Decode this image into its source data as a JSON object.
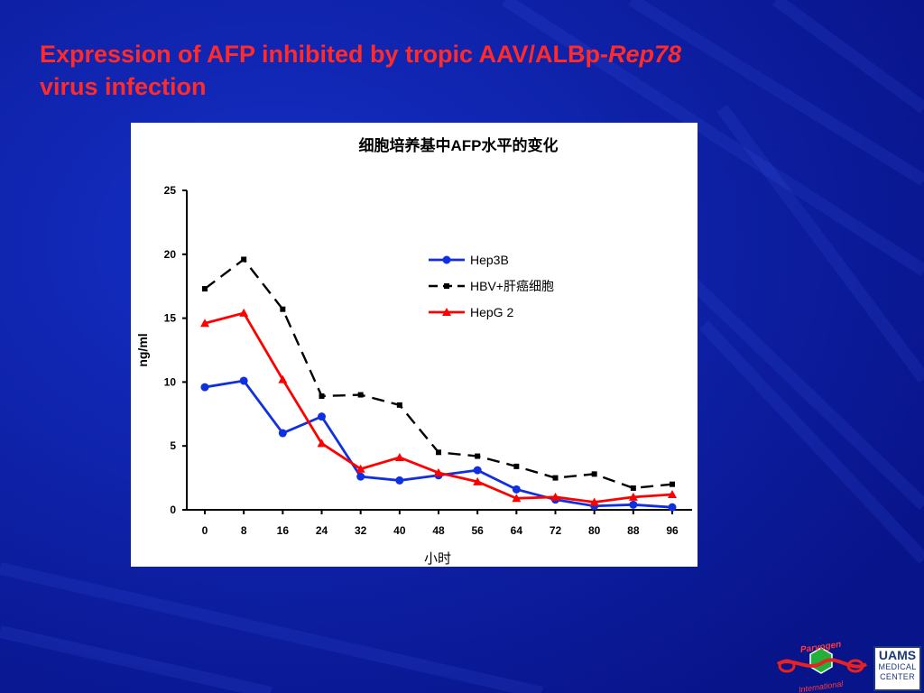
{
  "slide": {
    "title_part1": "Expression of AFP inhibited by tropic AAV/ALBp-",
    "title_italic": "Rep78",
    "title_line2": "virus infection",
    "background_color": "#0b1a9e",
    "title_color": "#ff2a2a"
  },
  "chart_data": {
    "type": "line",
    "title": "细胞培养基中AFP水平的变化",
    "xlabel": "小时",
    "ylabel": "ng/ml",
    "x": [
      0,
      8,
      16,
      24,
      32,
      40,
      48,
      56,
      64,
      72,
      80,
      88,
      96
    ],
    "xticks": [
      "0",
      "8",
      "16",
      "24",
      "32",
      "40",
      "48",
      "56",
      "64",
      "72",
      "80",
      "88",
      "96"
    ],
    "yticks": [
      "0",
      "5",
      "10",
      "15",
      "20",
      "25"
    ],
    "ylim": [
      0,
      25
    ],
    "grid": false,
    "legend_position": "top-right",
    "series": [
      {
        "name": "Hep3B",
        "color": "#1030e0",
        "line_style": "solid",
        "marker": "circle",
        "values": [
          9.6,
          10.1,
          6.0,
          7.3,
          2.6,
          2.3,
          2.7,
          3.1,
          1.6,
          0.8,
          0.3,
          0.4,
          0.2
        ]
      },
      {
        "name": "HBV+肝癌细胞",
        "color": "#000000",
        "line_style": "dashed",
        "marker": "square",
        "values": [
          17.3,
          19.6,
          15.7,
          8.9,
          9.0,
          8.2,
          4.5,
          4.2,
          3.4,
          2.5,
          2.8,
          1.7,
          2.0
        ]
      },
      {
        "name": "HepG 2",
        "color": "#ff0000",
        "line_style": "solid",
        "marker": "triangle",
        "values": [
          14.6,
          15.4,
          10.2,
          5.2,
          3.2,
          4.1,
          2.9,
          2.2,
          0.9,
          1.0,
          0.6,
          1.0,
          1.2
        ]
      }
    ]
  },
  "logos": {
    "left_top_text": "Parvogen",
    "left_bottom_text": "International",
    "right_line1": "UAMS",
    "right_line2": "MEDICAL",
    "right_line3": "CENTER"
  }
}
